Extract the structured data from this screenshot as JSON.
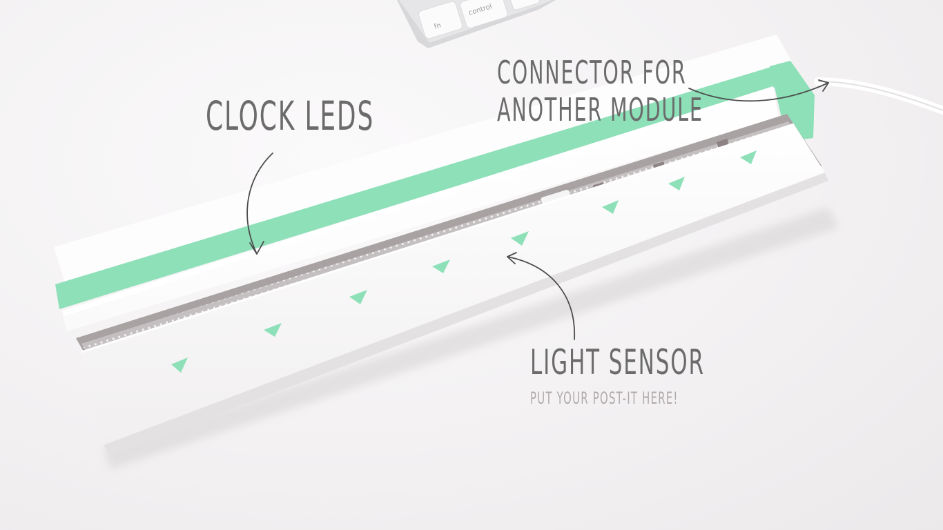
{
  "annotations": {
    "clock_leds": "CLOCK LEDS",
    "connector_line1": "CONNECTOR FOR",
    "connector_line2": "ANOTHER MODULE",
    "light_sensor": "LIGHT SENSOR",
    "light_sensor_note": "PUT YOUR POST-IT HERE!"
  },
  "keyboard": {
    "key_fn": "fn",
    "key_control": "control"
  },
  "colors": {
    "background": "#f4f2f3",
    "mint_tape": "#8ee0b9",
    "board": "#b9b3b4",
    "annotation_text": "#6b6b6b",
    "annotation_subtext": "#b0a9aa"
  }
}
